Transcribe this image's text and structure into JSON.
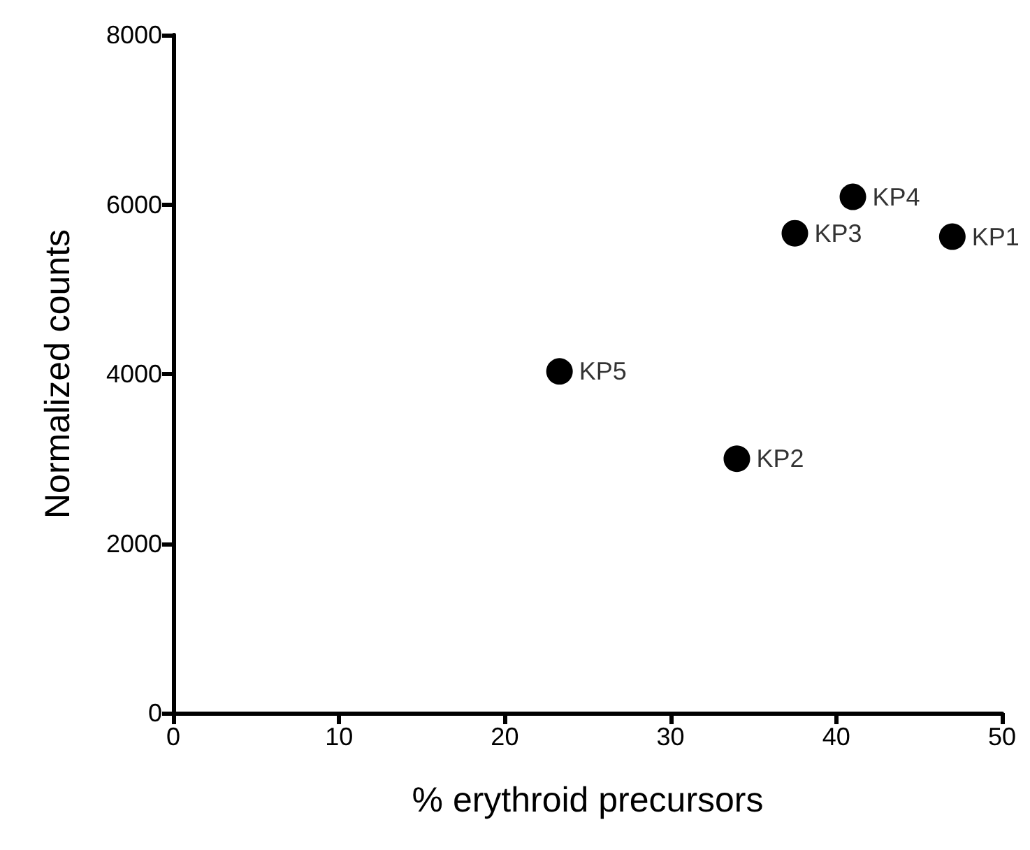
{
  "chart_data": {
    "type": "scatter",
    "xlabel": "% erythroid precursors",
    "ylabel": "Normalized counts",
    "x": [
      47,
      34,
      37.5,
      41,
      23.3
    ],
    "series": [
      {
        "color": "#000000",
        "values": [
          5620,
          3000,
          5660,
          6090,
          4030
        ]
      }
    ],
    "annotations": [
      {
        "text": "KP1",
        "x": 47,
        "y": 5620
      },
      {
        "text": "KP2",
        "x": 34,
        "y": 3000
      },
      {
        "text": "KP3",
        "x": 37.5,
        "y": 5660
      },
      {
        "text": "KP4",
        "x": 41,
        "y": 6090
      },
      {
        "text": "KP5",
        "x": 23.3,
        "y": 4030
      }
    ],
    "xlim": [
      0,
      50
    ],
    "xticks": [
      0,
      10,
      20,
      30,
      40,
      50
    ],
    "ylim": [
      0,
      8000
    ],
    "yticks": [
      0,
      2000,
      4000,
      6000,
      8000
    ],
    "marker": "circle",
    "grid": false
  }
}
